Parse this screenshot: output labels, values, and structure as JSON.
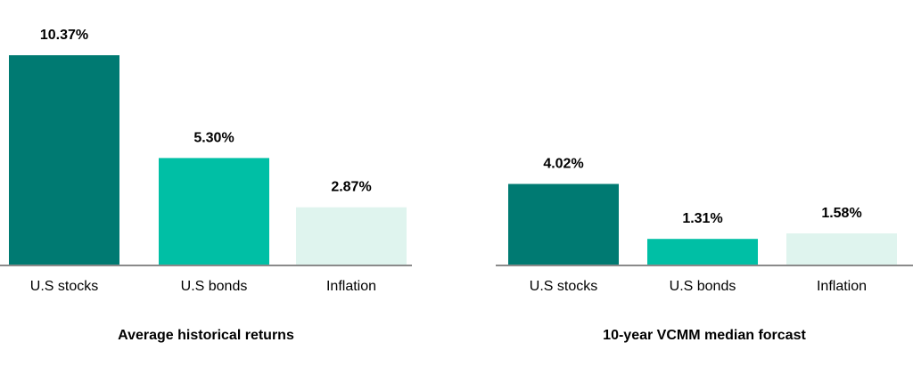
{
  "chart_data": [
    {
      "type": "bar",
      "title": "Average historical returns",
      "categories": [
        "U.S stocks",
        "U.S bonds",
        "Inflation"
      ],
      "values": [
        10.37,
        5.3,
        2.87
      ],
      "labels": [
        "10.37%",
        "5.30%",
        "2.87%"
      ],
      "colors": [
        "#007a72",
        "#00bfa5",
        "#dff4ee"
      ],
      "ylim": [
        0,
        10.37
      ],
      "grid": false
    },
    {
      "type": "bar",
      "title": "10-year VCMM median forcast",
      "categories": [
        "U.S stocks",
        "U.S bonds",
        "Inflation"
      ],
      "values": [
        4.02,
        1.31,
        1.58
      ],
      "labels": [
        "4.02%",
        "1.31%",
        "1.58%"
      ],
      "colors": [
        "#007a72",
        "#00bfa5",
        "#dff4ee"
      ],
      "ylim": [
        0,
        10.37
      ],
      "grid": false
    }
  ]
}
